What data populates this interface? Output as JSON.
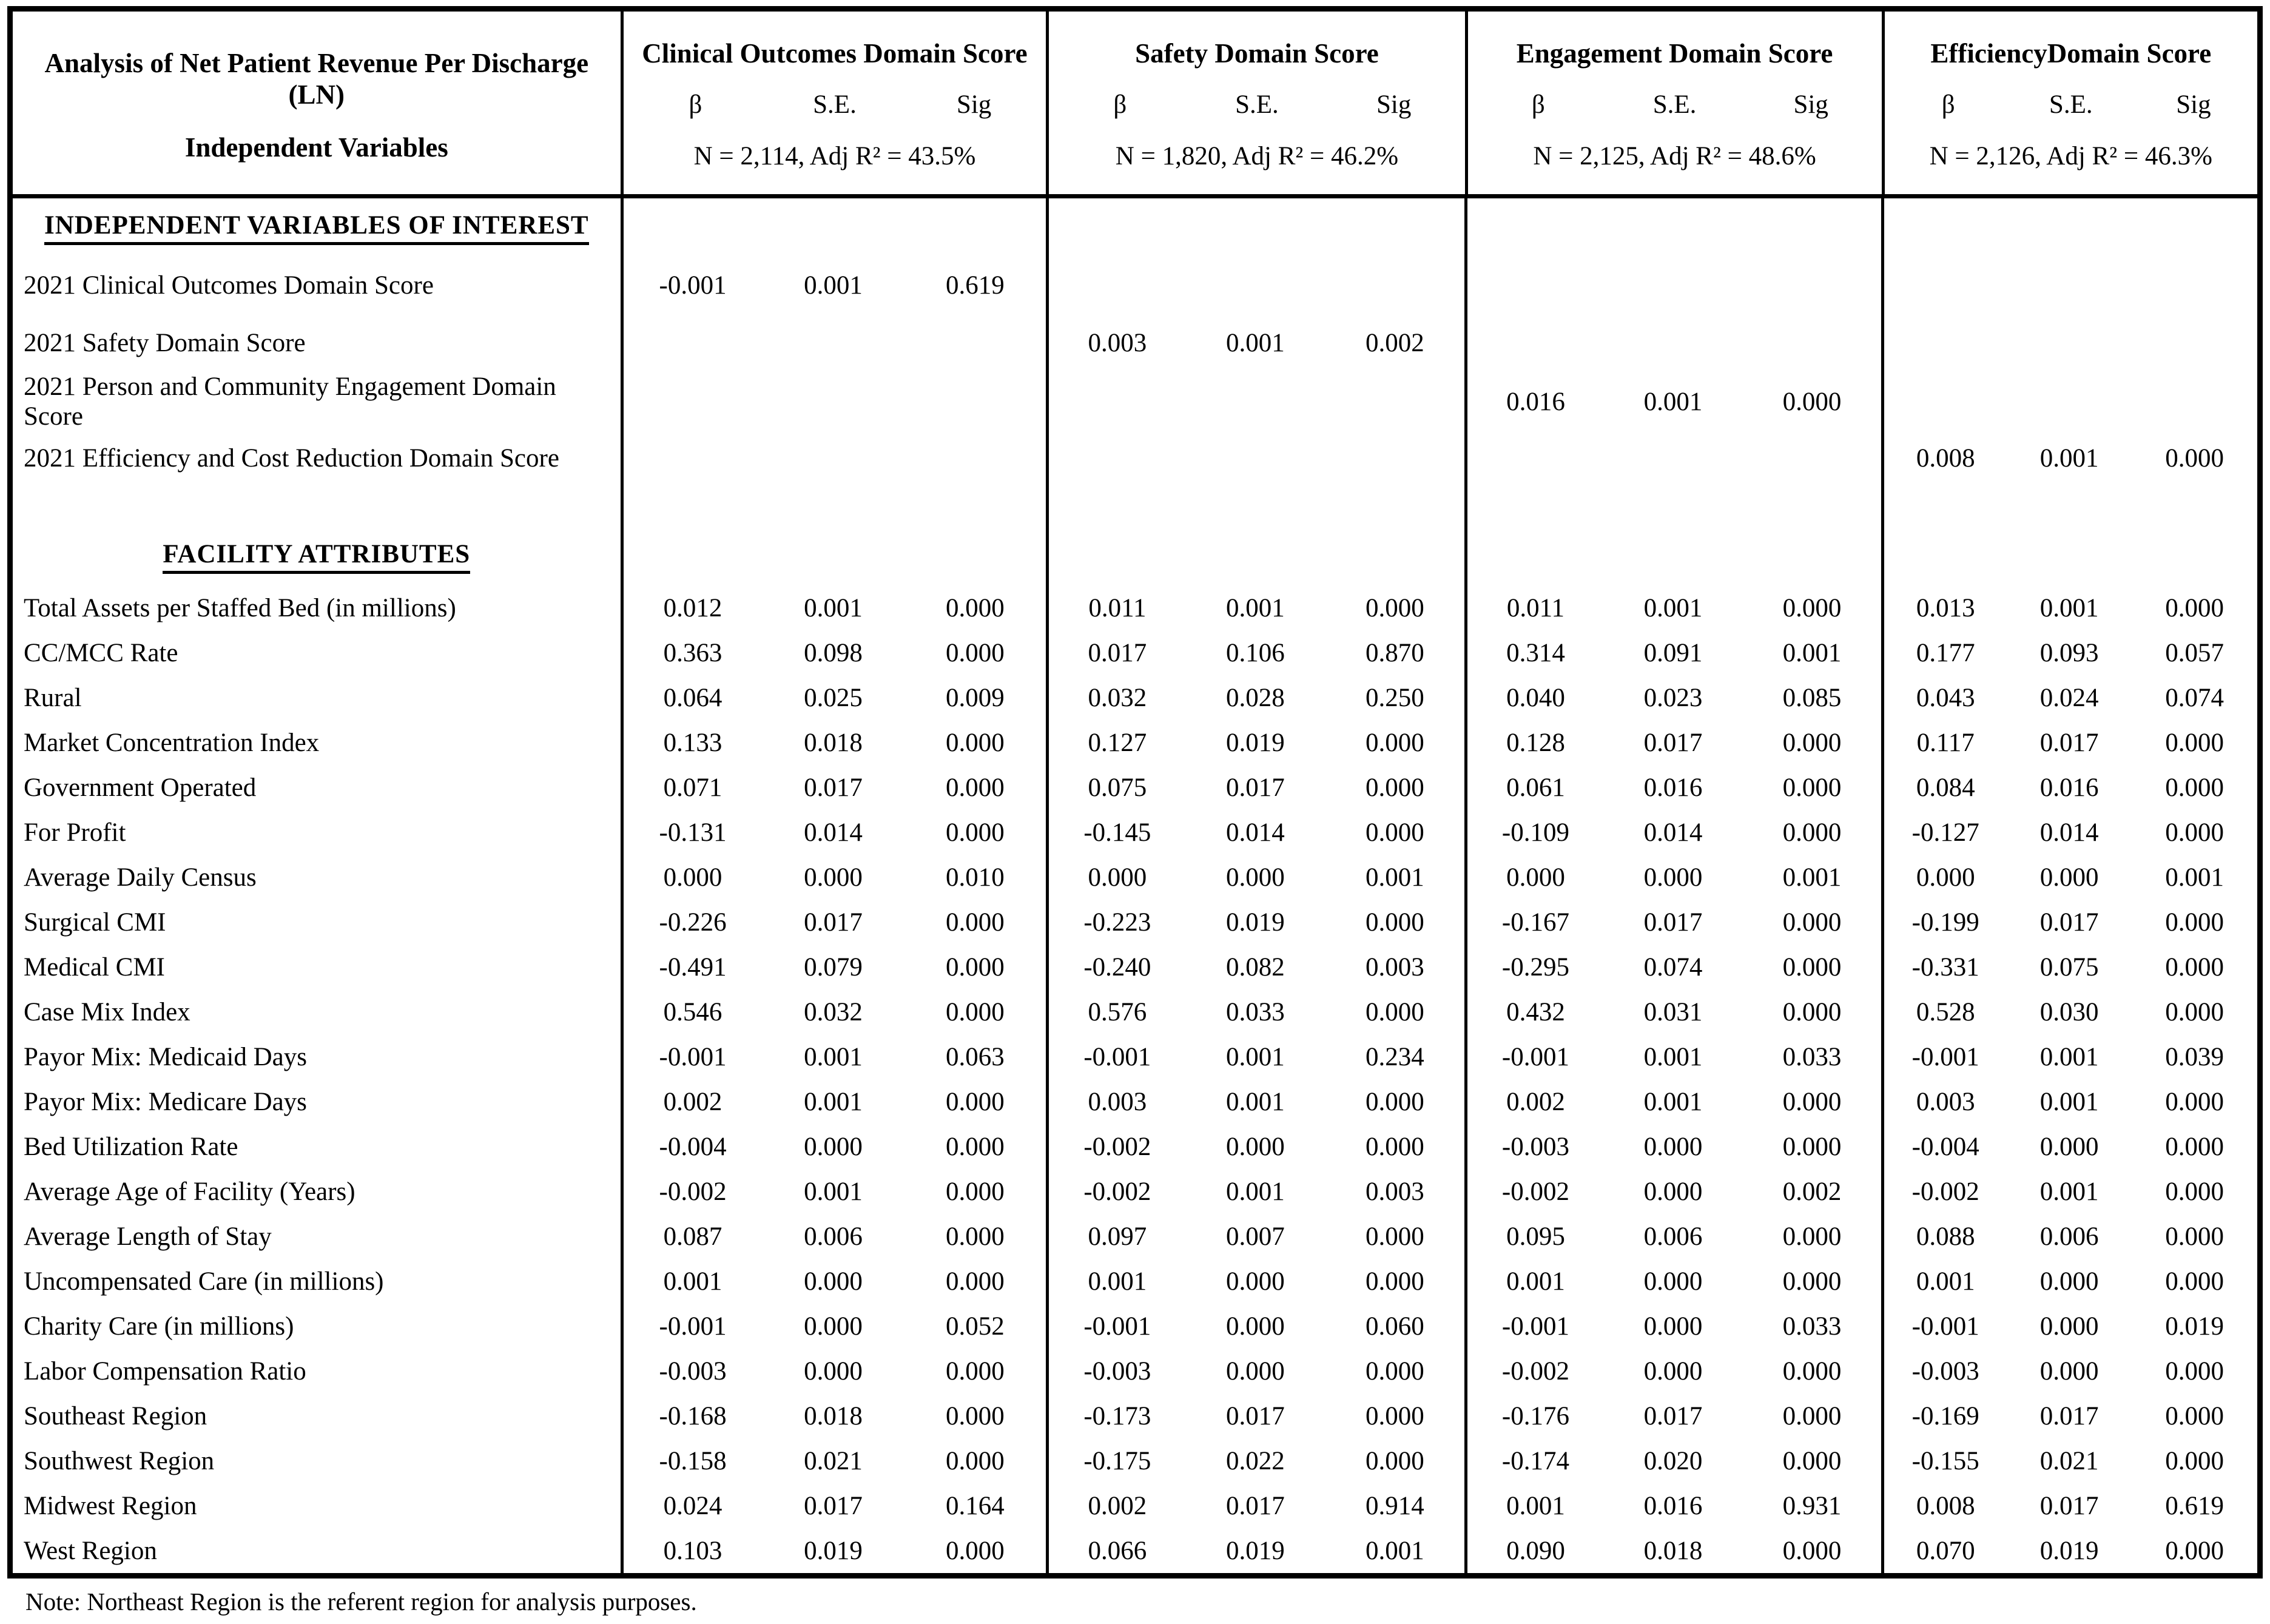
{
  "header": {
    "title_line1": "Analysis of Net Patient Revenue Per Discharge (LN)",
    "title_line2": "Independent Variables",
    "col_labels": {
      "beta": "β",
      "se": "S.E.",
      "sig": "Sig"
    }
  },
  "groups": [
    {
      "name": "Clinical Outcomes Domain Score",
      "stats": "N = 2,114, Adj R²  = 43.5%"
    },
    {
      "name": "Safety Domain Score",
      "stats": "N = 1,820, Adj R²  = 46.2%"
    },
    {
      "name": "Engagement Domain Score",
      "stats": "N = 2,125, Adj R²  = 48.6%"
    },
    {
      "name": "EfficiencyDomain Score",
      "stats": "N = 2,126, Adj R²  = 46.3%"
    }
  ],
  "body": {
    "rows": [
      {
        "type": "section",
        "label": "INDEPENDENT VARIABLES OF INTEREST"
      },
      {
        "type": "iv",
        "label": "2021 Clinical Outcomes Domain Score",
        "clinical": [
          "-0.001",
          "0.001",
          "0.619"
        ],
        "safety": [
          "",
          "",
          ""
        ],
        "engagement": [
          "",
          "",
          ""
        ],
        "efficiency": [
          "",
          "",
          ""
        ]
      },
      {
        "type": "iv",
        "label": "2021 Safety Domain Score",
        "clinical": [
          "",
          "",
          ""
        ],
        "safety": [
          "0.003",
          "0.001",
          "0.002"
        ],
        "engagement": [
          "",
          "",
          ""
        ],
        "efficiency": [
          "",
          "",
          ""
        ]
      },
      {
        "type": "iv",
        "label": "2021 Person and Community Engagement Domain Score",
        "clinical": [
          "",
          "",
          ""
        ],
        "safety": [
          "",
          "",
          ""
        ],
        "engagement": [
          "0.016",
          "0.001",
          "0.000"
        ],
        "efficiency": [
          "",
          "",
          ""
        ]
      },
      {
        "type": "iv",
        "label": "2021 Efficiency and Cost Reduction Domain Score",
        "clinical": [
          "",
          "",
          ""
        ],
        "safety": [
          "",
          "",
          ""
        ],
        "engagement": [
          "",
          "",
          ""
        ],
        "efficiency": [
          "0.008",
          "0.001",
          "0.000"
        ]
      },
      {
        "type": "blank",
        "label": ""
      },
      {
        "type": "section",
        "label": "FACILITY ATTRIBUTES"
      },
      {
        "type": "attr",
        "label": "Total Assets per Staffed Bed (in millions)",
        "clinical": [
          "0.012",
          "0.001",
          "0.000"
        ],
        "safety": [
          "0.011",
          "0.001",
          "0.000"
        ],
        "engagement": [
          "0.011",
          "0.001",
          "0.000"
        ],
        "efficiency": [
          "0.013",
          "0.001",
          "0.000"
        ]
      },
      {
        "type": "attr",
        "label": "CC/MCC Rate",
        "clinical": [
          "0.363",
          "0.098",
          "0.000"
        ],
        "safety": [
          "0.017",
          "0.106",
          "0.870"
        ],
        "engagement": [
          "0.314",
          "0.091",
          "0.001"
        ],
        "efficiency": [
          "0.177",
          "0.093",
          "0.057"
        ]
      },
      {
        "type": "attr",
        "label": "Rural",
        "clinical": [
          "0.064",
          "0.025",
          "0.009"
        ],
        "safety": [
          "0.032",
          "0.028",
          "0.250"
        ],
        "engagement": [
          "0.040",
          "0.023",
          "0.085"
        ],
        "efficiency": [
          "0.043",
          "0.024",
          "0.074"
        ]
      },
      {
        "type": "attr",
        "label": "Market Concentration Index",
        "clinical": [
          "0.133",
          "0.018",
          "0.000"
        ],
        "safety": [
          "0.127",
          "0.019",
          "0.000"
        ],
        "engagement": [
          "0.128",
          "0.017",
          "0.000"
        ],
        "efficiency": [
          "0.117",
          "0.017",
          "0.000"
        ]
      },
      {
        "type": "attr",
        "label": "Government Operated",
        "clinical": [
          "0.071",
          "0.017",
          "0.000"
        ],
        "safety": [
          "0.075",
          "0.017",
          "0.000"
        ],
        "engagement": [
          "0.061",
          "0.016",
          "0.000"
        ],
        "efficiency": [
          "0.084",
          "0.016",
          "0.000"
        ]
      },
      {
        "type": "attr",
        "label": "For Profit",
        "clinical": [
          "-0.131",
          "0.014",
          "0.000"
        ],
        "safety": [
          "-0.145",
          "0.014",
          "0.000"
        ],
        "engagement": [
          "-0.109",
          "0.014",
          "0.000"
        ],
        "efficiency": [
          "-0.127",
          "0.014",
          "0.000"
        ]
      },
      {
        "type": "attr",
        "label": "Average Daily Census",
        "clinical": [
          "0.000",
          "0.000",
          "0.010"
        ],
        "safety": [
          "0.000",
          "0.000",
          "0.001"
        ],
        "engagement": [
          "0.000",
          "0.000",
          "0.001"
        ],
        "efficiency": [
          "0.000",
          "0.000",
          "0.001"
        ]
      },
      {
        "type": "attr",
        "label": "Surgical CMI",
        "clinical": [
          "-0.226",
          "0.017",
          "0.000"
        ],
        "safety": [
          "-0.223",
          "0.019",
          "0.000"
        ],
        "engagement": [
          "-0.167",
          "0.017",
          "0.000"
        ],
        "efficiency": [
          "-0.199",
          "0.017",
          "0.000"
        ]
      },
      {
        "type": "attr",
        "label": "Medical CMI",
        "clinical": [
          "-0.491",
          "0.079",
          "0.000"
        ],
        "safety": [
          "-0.240",
          "0.082",
          "0.003"
        ],
        "engagement": [
          "-0.295",
          "0.074",
          "0.000"
        ],
        "efficiency": [
          "-0.331",
          "0.075",
          "0.000"
        ]
      },
      {
        "type": "attr",
        "label": "Case Mix Index",
        "clinical": [
          "0.546",
          "0.032",
          "0.000"
        ],
        "safety": [
          "0.576",
          "0.033",
          "0.000"
        ],
        "engagement": [
          "0.432",
          "0.031",
          "0.000"
        ],
        "efficiency": [
          "0.528",
          "0.030",
          "0.000"
        ]
      },
      {
        "type": "attr",
        "label": "Payor Mix: Medicaid Days",
        "clinical": [
          "-0.001",
          "0.001",
          "0.063"
        ],
        "safety": [
          "-0.001",
          "0.001",
          "0.234"
        ],
        "engagement": [
          "-0.001",
          "0.001",
          "0.033"
        ],
        "efficiency": [
          "-0.001",
          "0.001",
          "0.039"
        ]
      },
      {
        "type": "attr",
        "label": "Payor Mix: Medicare Days",
        "clinical": [
          "0.002",
          "0.001",
          "0.000"
        ],
        "safety": [
          "0.003",
          "0.001",
          "0.000"
        ],
        "engagement": [
          "0.002",
          "0.001",
          "0.000"
        ],
        "efficiency": [
          "0.003",
          "0.001",
          "0.000"
        ]
      },
      {
        "type": "attr",
        "label": "Bed Utilization Rate",
        "clinical": [
          "-0.004",
          "0.000",
          "0.000"
        ],
        "safety": [
          "-0.002",
          "0.000",
          "0.000"
        ],
        "engagement": [
          "-0.003",
          "0.000",
          "0.000"
        ],
        "efficiency": [
          "-0.004",
          "0.000",
          "0.000"
        ]
      },
      {
        "type": "attr",
        "label": "Average Age of Facility (Years)",
        "clinical": [
          "-0.002",
          "0.001",
          "0.000"
        ],
        "safety": [
          "-0.002",
          "0.001",
          "0.003"
        ],
        "engagement": [
          "-0.002",
          "0.000",
          "0.002"
        ],
        "efficiency": [
          "-0.002",
          "0.001",
          "0.000"
        ]
      },
      {
        "type": "attr",
        "label": "Average Length of Stay",
        "clinical": [
          "0.087",
          "0.006",
          "0.000"
        ],
        "safety": [
          "0.097",
          "0.007",
          "0.000"
        ],
        "engagement": [
          "0.095",
          "0.006",
          "0.000"
        ],
        "efficiency": [
          "0.088",
          "0.006",
          "0.000"
        ]
      },
      {
        "type": "attr",
        "label": "Uncompensated Care (in millions)",
        "clinical": [
          "0.001",
          "0.000",
          "0.000"
        ],
        "safety": [
          "0.001",
          "0.000",
          "0.000"
        ],
        "engagement": [
          "0.001",
          "0.000",
          "0.000"
        ],
        "efficiency": [
          "0.001",
          "0.000",
          "0.000"
        ]
      },
      {
        "type": "attr",
        "label": "Charity Care (in millions)",
        "clinical": [
          "-0.001",
          "0.000",
          "0.052"
        ],
        "safety": [
          "-0.001",
          "0.000",
          "0.060"
        ],
        "engagement": [
          "-0.001",
          "0.000",
          "0.033"
        ],
        "efficiency": [
          "-0.001",
          "0.000",
          "0.019"
        ]
      },
      {
        "type": "attr",
        "label": "Labor Compensation Ratio",
        "clinical": [
          "-0.003",
          "0.000",
          "0.000"
        ],
        "safety": [
          "-0.003",
          "0.000",
          "0.000"
        ],
        "engagement": [
          "-0.002",
          "0.000",
          "0.000"
        ],
        "efficiency": [
          "-0.003",
          "0.000",
          "0.000"
        ]
      },
      {
        "type": "attr",
        "label": "Southeast Region",
        "clinical": [
          "-0.168",
          "0.018",
          "0.000"
        ],
        "safety": [
          "-0.173",
          "0.017",
          "0.000"
        ],
        "engagement": [
          "-0.176",
          "0.017",
          "0.000"
        ],
        "efficiency": [
          "-0.169",
          "0.017",
          "0.000"
        ]
      },
      {
        "type": "attr",
        "label": "Southwest Region",
        "clinical": [
          "-0.158",
          "0.021",
          "0.000"
        ],
        "safety": [
          "-0.175",
          "0.022",
          "0.000"
        ],
        "engagement": [
          "-0.174",
          "0.020",
          "0.000"
        ],
        "efficiency": [
          "-0.155",
          "0.021",
          "0.000"
        ]
      },
      {
        "type": "attr",
        "label": "Midwest Region",
        "clinical": [
          "0.024",
          "0.017",
          "0.164"
        ],
        "safety": [
          "0.002",
          "0.017",
          "0.914"
        ],
        "engagement": [
          "0.001",
          "0.016",
          "0.931"
        ],
        "efficiency": [
          "0.008",
          "0.017",
          "0.619"
        ]
      },
      {
        "type": "attr",
        "label": "West Region",
        "clinical": [
          "0.103",
          "0.019",
          "0.000"
        ],
        "safety": [
          "0.066",
          "0.019",
          "0.001"
        ],
        "engagement": [
          "0.090",
          "0.018",
          "0.000"
        ],
        "efficiency": [
          "0.070",
          "0.019",
          "0.000"
        ]
      }
    ]
  },
  "note": "Note: Northeast Region is the referent region for analysis purposes.",
  "colors": {
    "border": "#000000",
    "background": "#ffffff",
    "text": "#000000"
  }
}
